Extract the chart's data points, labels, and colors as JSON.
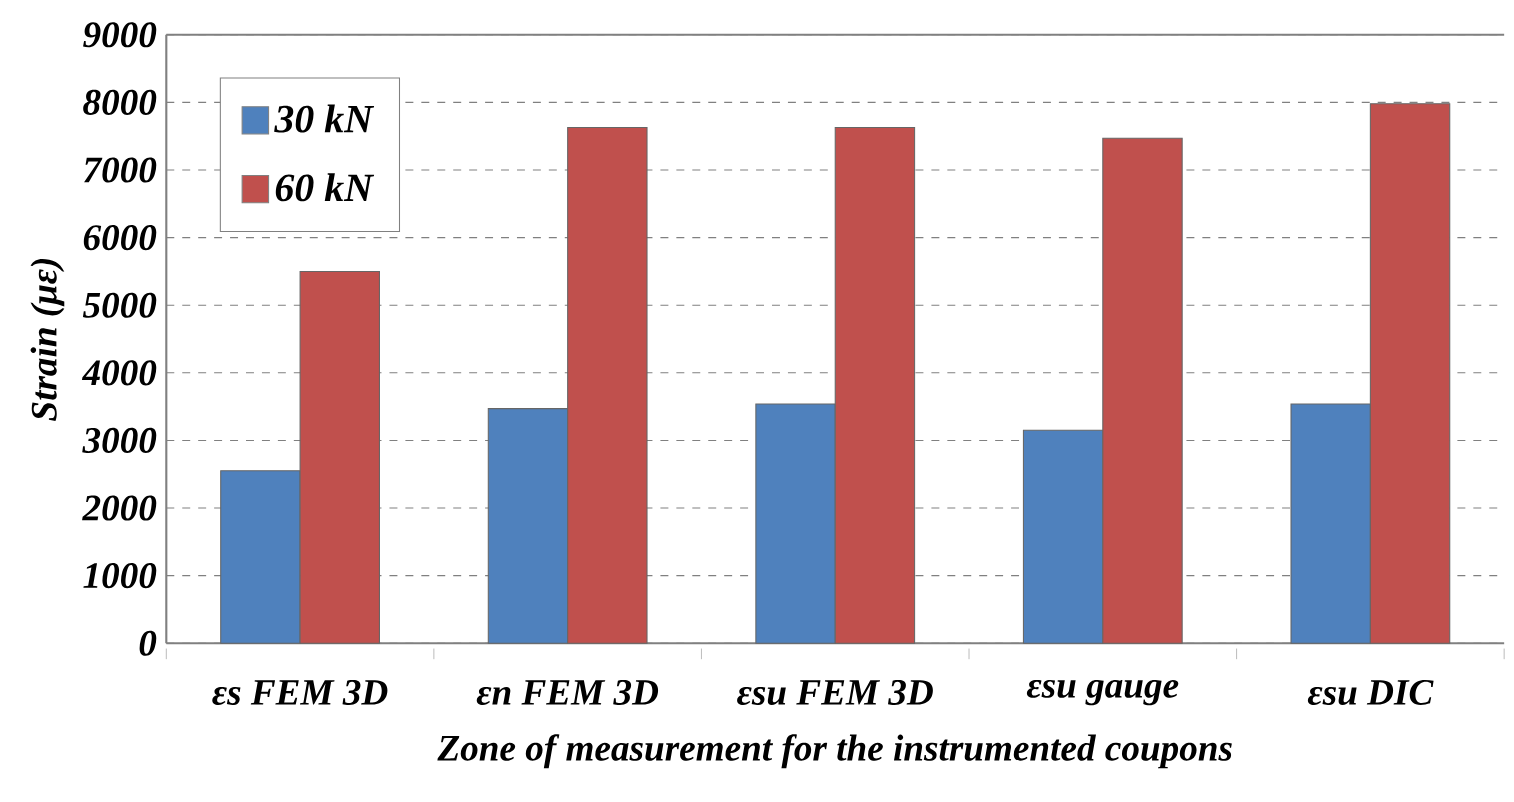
{
  "chart_data": {
    "type": "bar",
    "xlabel": "Zone of measurement for the instrumented coupons",
    "ylabel": "Strain (με)",
    "categories": [
      "εs FEM 3D",
      "εn FEM 3D",
      "εsu FEM 3D",
      "εsu gauge",
      "εsu DIC"
    ],
    "series": [
      {
        "name": "30 kN",
        "color": "#4f81bd",
        "values": [
          2550,
          3470,
          3540,
          3150,
          3540
        ]
      },
      {
        "name": "60 kN",
        "color": "#c0504d",
        "values": [
          5500,
          7630,
          7630,
          7470,
          7980
        ]
      }
    ],
    "ylim": [
      0,
      9000
    ],
    "yticks": [
      0,
      1000,
      2000,
      3000,
      4000,
      5000,
      6000,
      7000,
      8000,
      9000
    ],
    "grid": "y",
    "legend": "top left"
  }
}
